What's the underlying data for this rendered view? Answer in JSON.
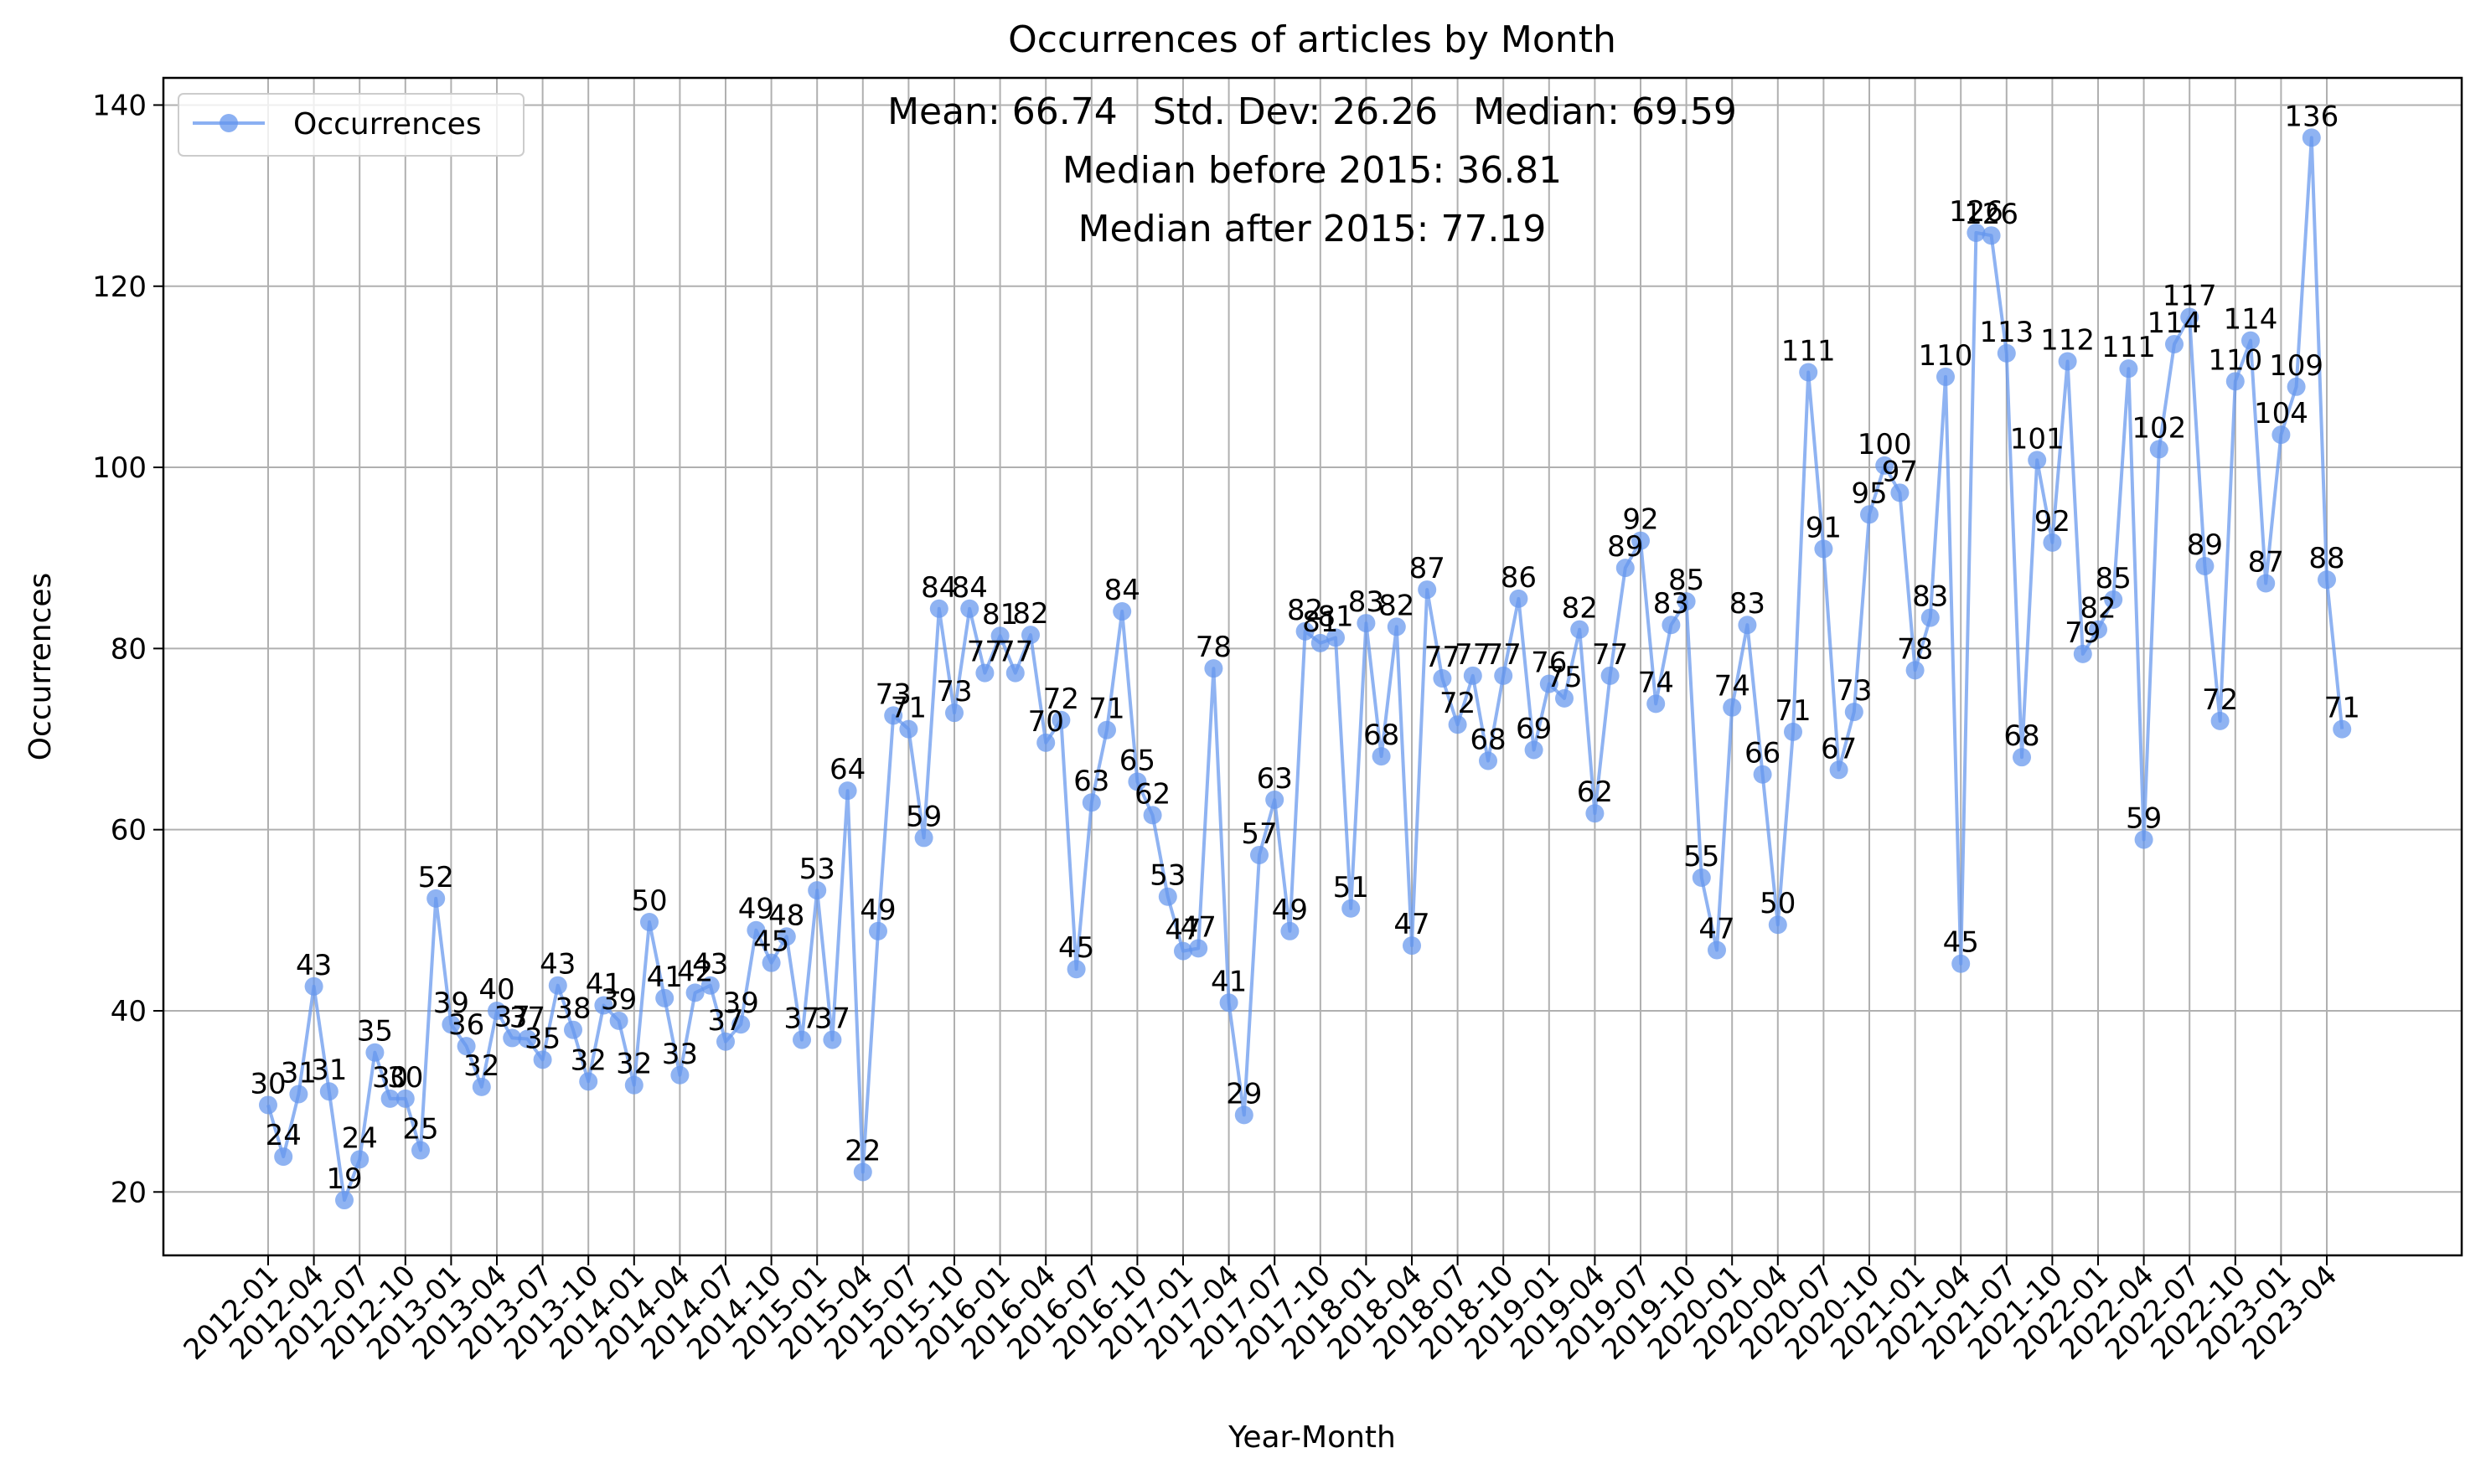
{
  "chart_data": {
    "type": "line",
    "title": "Occurrences of articles by Month",
    "xlabel": "Year-Month",
    "ylabel": "Occurrences",
    "ylim": [
      13,
      143
    ],
    "yticks": [
      20,
      40,
      60,
      80,
      100,
      120,
      140
    ],
    "grid": true,
    "legend_position": "top-left",
    "line_color": "#6495ED",
    "stats": {
      "line1": "Mean: 66.74   Std. Dev: 26.26   Median: 69.59",
      "line2": "Median before 2015: 36.81",
      "line3": "Median after 2015: 77.19"
    },
    "xtick_labels": [
      "2012-01",
      "2012-04",
      "2012-07",
      "2012-10",
      "2013-01",
      "2013-04",
      "2013-07",
      "2013-10",
      "2014-01",
      "2014-04",
      "2014-07",
      "2014-10",
      "2015-01",
      "2015-04",
      "2015-07",
      "2015-10",
      "2016-01",
      "2016-04",
      "2016-07",
      "2016-10",
      "2017-01",
      "2017-04",
      "2017-07",
      "2017-10",
      "2018-01",
      "2018-04",
      "2018-07",
      "2018-10",
      "2019-01",
      "2019-04",
      "2019-07",
      "2019-10",
      "2020-01",
      "2020-04",
      "2020-07",
      "2020-10",
      "2021-01",
      "2021-04",
      "2021-07",
      "2021-10",
      "2022-01",
      "2022-04",
      "2022-07",
      "2022-10",
      "2023-01",
      "2023-04"
    ],
    "series": [
      {
        "name": "Occurrences",
        "start": "2012-01",
        "values": [
          29.6,
          23.9,
          30.8,
          42.7,
          31.1,
          19.1,
          23.6,
          35.4,
          30.3,
          30.3,
          24.6,
          52.4,
          38.5,
          36.1,
          31.6,
          40.0,
          37.0,
          36.9,
          34.6,
          42.8,
          37.9,
          32.2,
          40.6,
          38.9,
          31.8,
          49.8,
          41.4,
          32.9,
          42.0,
          42.8,
          36.6,
          38.5,
          48.9,
          45.3,
          48.2,
          36.8,
          53.3,
          36.8,
          64.3,
          22.2,
          48.8,
          72.6,
          71.1,
          59.1,
          84.4,
          72.9,
          84.4,
          77.3,
          81.4,
          77.3,
          81.5,
          69.6,
          72.1,
          44.6,
          63.0,
          71.0,
          84.1,
          65.3,
          61.6,
          52.6,
          46.6,
          46.9,
          77.8,
          40.9,
          28.5,
          57.2,
          63.3,
          48.8,
          81.9,
          80.6,
          81.2,
          51.3,
          82.8,
          68.1,
          82.4,
          47.2,
          86.5,
          76.7,
          71.6,
          77.0,
          67.6,
          77.0,
          85.5,
          68.8,
          76.1,
          74.5,
          82.1,
          61.8,
          77.0,
          88.9,
          91.9,
          73.9,
          82.6,
          85.2,
          54.7,
          46.7,
          73.5,
          82.6,
          66.1,
          49.5,
          70.8,
          110.5,
          91.0,
          66.6,
          73.0,
          94.8,
          100.2,
          97.2,
          77.6,
          83.4,
          110.0,
          45.2,
          125.9,
          125.6,
          112.6,
          68.0,
          100.8,
          91.7,
          111.7,
          79.4,
          82.1,
          85.4,
          110.9,
          58.9,
          102.0,
          113.6,
          116.6,
          89.1,
          72.0,
          109.5,
          114.0,
          87.2,
          103.6,
          108.9,
          136.4,
          87.6,
          71.1
        ]
      }
    ]
  }
}
